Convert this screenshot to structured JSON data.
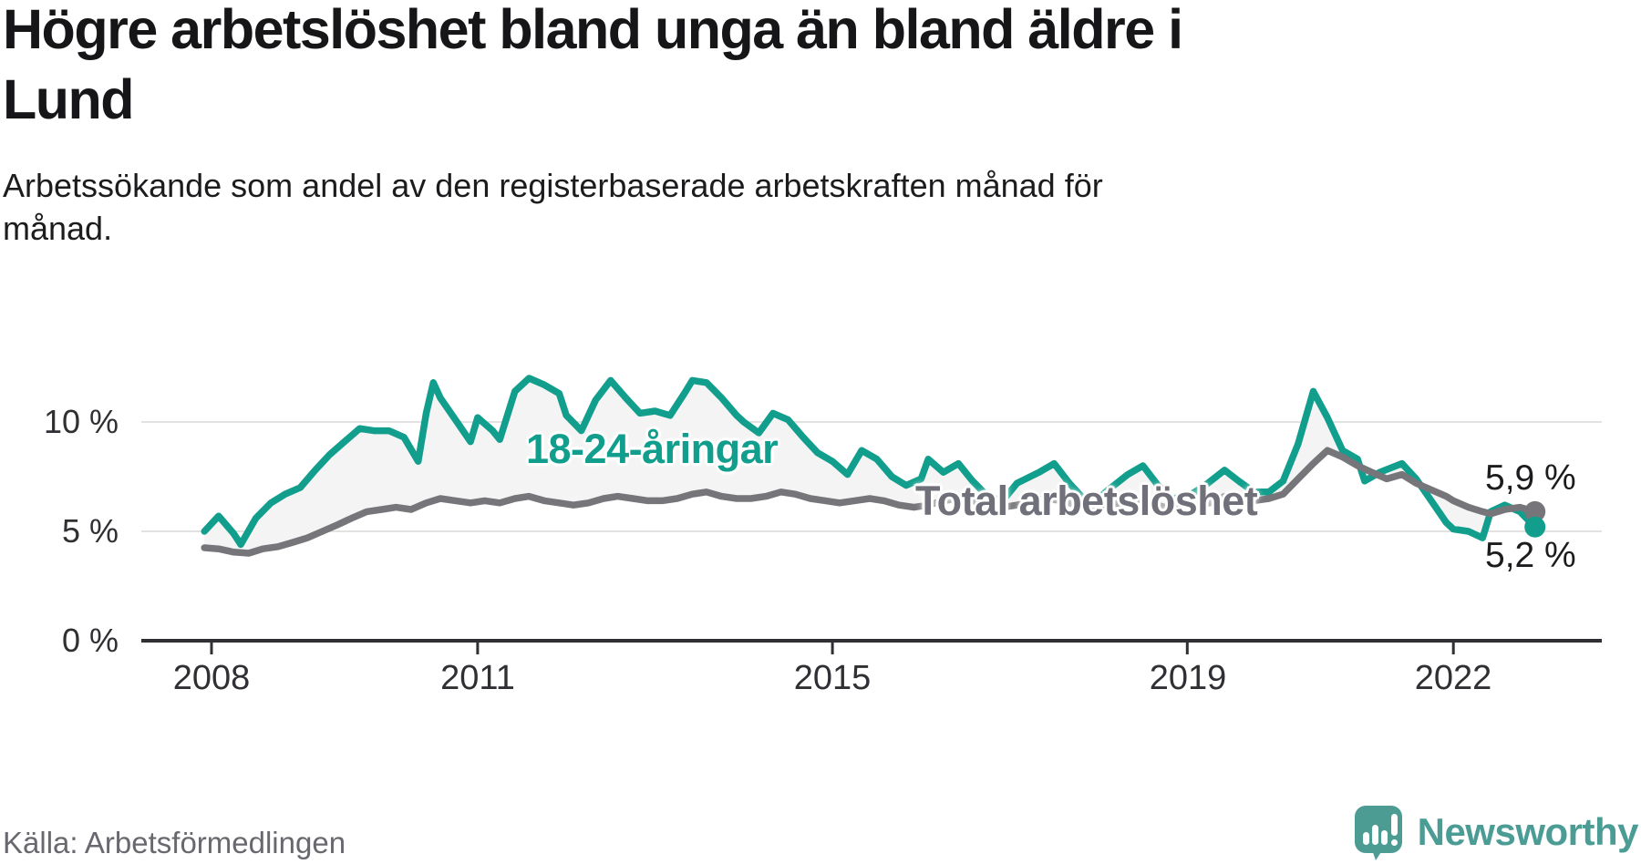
{
  "header": {
    "title": "Högre arbetslöshet bland unga än bland äldre i\nLund",
    "subtitle": "Arbetssökande som andel av den registerbaserade arbetskraften månad för\nmånad."
  },
  "footer": {
    "source": "Källa: Arbetsförmedlingen",
    "brand": "Newsworthy"
  },
  "colors": {
    "accent_teal": "#119E8C",
    "line_gray": "#76767A",
    "fill_between": "#F4F4F4",
    "grid": "#E2E2E2",
    "axis": "#303034",
    "brand_teal": "#4C9C94"
  },
  "chart_data": {
    "type": "line",
    "unit": "%",
    "grid": "horizontal-only",
    "legend_position": "inline-labels",
    "x_axis": {
      "min": 2007.9,
      "max": 2023.6,
      "ticks": [
        {
          "value": 2008,
          "label": "2008"
        },
        {
          "value": 2011,
          "label": "2011"
        },
        {
          "value": 2015,
          "label": "2015"
        },
        {
          "value": 2019,
          "label": "2019"
        },
        {
          "value": 2022,
          "label": "2022"
        }
      ]
    },
    "y_axis": {
      "min": 0,
      "max": 13.5,
      "ticks": [
        {
          "value": 0,
          "label": "0 %"
        },
        {
          "value": 5,
          "label": "5 %"
        },
        {
          "value": 10,
          "label": "10 %"
        }
      ]
    },
    "fill_between_series": true,
    "series": [
      {
        "name": "18-24-åringar",
        "color": "#119E8C",
        "end_label": "5,2 %",
        "end_value": 5.2,
        "points": [
          [
            2007.92,
            5.0
          ],
          [
            2008.08,
            5.7
          ],
          [
            2008.25,
            4.9
          ],
          [
            2008.33,
            4.4
          ],
          [
            2008.5,
            5.6
          ],
          [
            2008.67,
            6.3
          ],
          [
            2008.83,
            6.7
          ],
          [
            2009.0,
            7.0
          ],
          [
            2009.17,
            7.8
          ],
          [
            2009.33,
            8.5
          ],
          [
            2009.5,
            9.1
          ],
          [
            2009.67,
            9.7
          ],
          [
            2009.83,
            9.6
          ],
          [
            2010.0,
            9.6
          ],
          [
            2010.17,
            9.3
          ],
          [
            2010.33,
            8.2
          ],
          [
            2010.42,
            10.4
          ],
          [
            2010.5,
            11.8
          ],
          [
            2010.58,
            11.1
          ],
          [
            2010.75,
            10.1
          ],
          [
            2010.92,
            9.1
          ],
          [
            2011.0,
            10.2
          ],
          [
            2011.17,
            9.6
          ],
          [
            2011.25,
            9.2
          ],
          [
            2011.42,
            11.4
          ],
          [
            2011.58,
            12.0
          ],
          [
            2011.75,
            11.7
          ],
          [
            2011.92,
            11.3
          ],
          [
            2012.0,
            10.3
          ],
          [
            2012.17,
            9.6
          ],
          [
            2012.33,
            11.0
          ],
          [
            2012.5,
            11.9
          ],
          [
            2012.67,
            11.1
          ],
          [
            2012.83,
            10.4
          ],
          [
            2013.0,
            10.5
          ],
          [
            2013.17,
            10.3
          ],
          [
            2013.33,
            11.3
          ],
          [
            2013.42,
            11.9
          ],
          [
            2013.58,
            11.8
          ],
          [
            2013.75,
            11.1
          ],
          [
            2013.92,
            10.3
          ],
          [
            2014.0,
            10.0
          ],
          [
            2014.17,
            9.5
          ],
          [
            2014.33,
            10.4
          ],
          [
            2014.5,
            10.1
          ],
          [
            2014.67,
            9.3
          ],
          [
            2014.83,
            8.6
          ],
          [
            2015.0,
            8.2
          ],
          [
            2015.17,
            7.6
          ],
          [
            2015.33,
            8.7
          ],
          [
            2015.5,
            8.3
          ],
          [
            2015.67,
            7.5
          ],
          [
            2015.83,
            7.1
          ],
          [
            2016.0,
            7.4
          ],
          [
            2016.08,
            8.3
          ],
          [
            2016.25,
            7.7
          ],
          [
            2016.42,
            8.1
          ],
          [
            2016.58,
            7.3
          ],
          [
            2016.75,
            6.6
          ],
          [
            2016.92,
            6.4
          ],
          [
            2017.08,
            7.2
          ],
          [
            2017.33,
            7.7
          ],
          [
            2017.5,
            8.1
          ],
          [
            2017.67,
            7.2
          ],
          [
            2017.83,
            6.5
          ],
          [
            2017.92,
            6.2
          ],
          [
            2018.08,
            6.8
          ],
          [
            2018.33,
            7.6
          ],
          [
            2018.5,
            8.0
          ],
          [
            2018.67,
            7.1
          ],
          [
            2018.83,
            6.5
          ],
          [
            2019.0,
            6.6
          ],
          [
            2019.17,
            7.0
          ],
          [
            2019.42,
            7.8
          ],
          [
            2019.58,
            7.3
          ],
          [
            2019.75,
            6.8
          ],
          [
            2019.92,
            6.8
          ],
          [
            2020.08,
            7.3
          ],
          [
            2020.25,
            9.0
          ],
          [
            2020.42,
            11.4
          ],
          [
            2020.58,
            10.2
          ],
          [
            2020.75,
            8.7
          ],
          [
            2020.92,
            8.3
          ],
          [
            2021.0,
            7.3
          ],
          [
            2021.17,
            7.7
          ],
          [
            2021.42,
            8.1
          ],
          [
            2021.58,
            7.4
          ],
          [
            2021.75,
            6.4
          ],
          [
            2021.92,
            5.4
          ],
          [
            2022.0,
            5.1
          ],
          [
            2022.17,
            5.0
          ],
          [
            2022.33,
            4.7
          ],
          [
            2022.42,
            5.9
          ],
          [
            2022.58,
            6.2
          ],
          [
            2022.75,
            5.9
          ],
          [
            2022.92,
            5.2
          ]
        ]
      },
      {
        "name": "Total arbetslöshet",
        "color": "#76767A",
        "end_label": "5,9 %",
        "end_value": 5.9,
        "points": [
          [
            2007.92,
            4.25
          ],
          [
            2008.08,
            4.2
          ],
          [
            2008.25,
            4.05
          ],
          [
            2008.42,
            4.0
          ],
          [
            2008.58,
            4.2
          ],
          [
            2008.75,
            4.3
          ],
          [
            2008.92,
            4.5
          ],
          [
            2009.08,
            4.7
          ],
          [
            2009.25,
            5.0
          ],
          [
            2009.42,
            5.3
          ],
          [
            2009.58,
            5.6
          ],
          [
            2009.75,
            5.9
          ],
          [
            2009.92,
            6.0
          ],
          [
            2010.08,
            6.1
          ],
          [
            2010.25,
            6.0
          ],
          [
            2010.42,
            6.3
          ],
          [
            2010.58,
            6.5
          ],
          [
            2010.75,
            6.4
          ],
          [
            2010.92,
            6.3
          ],
          [
            2011.08,
            6.4
          ],
          [
            2011.25,
            6.3
          ],
          [
            2011.42,
            6.5
          ],
          [
            2011.58,
            6.6
          ],
          [
            2011.75,
            6.4
          ],
          [
            2011.92,
            6.3
          ],
          [
            2012.08,
            6.2
          ],
          [
            2012.25,
            6.3
          ],
          [
            2012.42,
            6.5
          ],
          [
            2012.58,
            6.6
          ],
          [
            2012.75,
            6.5
          ],
          [
            2012.92,
            6.4
          ],
          [
            2013.08,
            6.4
          ],
          [
            2013.25,
            6.5
          ],
          [
            2013.42,
            6.7
          ],
          [
            2013.58,
            6.8
          ],
          [
            2013.75,
            6.6
          ],
          [
            2013.92,
            6.5
          ],
          [
            2014.08,
            6.5
          ],
          [
            2014.25,
            6.6
          ],
          [
            2014.42,
            6.8
          ],
          [
            2014.58,
            6.7
          ],
          [
            2014.75,
            6.5
          ],
          [
            2014.92,
            6.4
          ],
          [
            2015.08,
            6.3
          ],
          [
            2015.25,
            6.4
          ],
          [
            2015.42,
            6.5
          ],
          [
            2015.58,
            6.4
          ],
          [
            2015.75,
            6.2
          ],
          [
            2015.92,
            6.1
          ],
          [
            2016.08,
            6.2
          ],
          [
            2016.25,
            6.4
          ],
          [
            2016.42,
            6.5
          ],
          [
            2016.58,
            6.4
          ],
          [
            2016.75,
            6.2
          ],
          [
            2016.92,
            6.1
          ],
          [
            2017.08,
            6.2
          ],
          [
            2017.25,
            6.4
          ],
          [
            2017.42,
            6.5
          ],
          [
            2017.58,
            6.4
          ],
          [
            2017.75,
            6.2
          ],
          [
            2017.92,
            6.1
          ],
          [
            2018.08,
            6.2
          ],
          [
            2018.25,
            6.3
          ],
          [
            2018.42,
            6.5
          ],
          [
            2018.58,
            6.3
          ],
          [
            2018.75,
            6.1
          ],
          [
            2018.92,
            6.0
          ],
          [
            2019.08,
            6.1
          ],
          [
            2019.25,
            6.3
          ],
          [
            2019.42,
            6.6
          ],
          [
            2019.58,
            6.5
          ],
          [
            2019.75,
            6.4
          ],
          [
            2019.92,
            6.5
          ],
          [
            2020.08,
            6.7
          ],
          [
            2020.25,
            7.4
          ],
          [
            2020.42,
            8.1
          ],
          [
            2020.58,
            8.7
          ],
          [
            2020.75,
            8.4
          ],
          [
            2020.92,
            8.0
          ],
          [
            2021.08,
            7.7
          ],
          [
            2021.25,
            7.4
          ],
          [
            2021.42,
            7.6
          ],
          [
            2021.58,
            7.2
          ],
          [
            2021.75,
            6.9
          ],
          [
            2021.92,
            6.6
          ],
          [
            2022.0,
            6.4
          ],
          [
            2022.17,
            6.1
          ],
          [
            2022.33,
            5.9
          ],
          [
            2022.42,
            5.8
          ],
          [
            2022.58,
            6.0
          ],
          [
            2022.75,
            6.1
          ],
          [
            2022.92,
            5.9
          ]
        ]
      }
    ]
  }
}
